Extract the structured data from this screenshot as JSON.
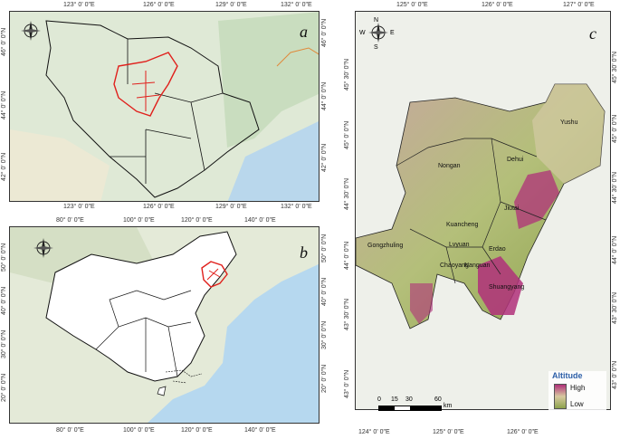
{
  "panels": {
    "a": {
      "letter": "a",
      "x_ticks": [
        "123° 0' 0\"E",
        "126° 0' 0\"E",
        "129° 0' 0\"E",
        "132° 0' 0\"E"
      ],
      "y_ticks": [
        "46° 0' 0\"N",
        "44° 0' 0\"N",
        "42° 0' 0\"N"
      ]
    },
    "b": {
      "letter": "b",
      "x_ticks": [
        "80° 0' 0\"E",
        "100° 0' 0\"E",
        "120° 0' 0\"E",
        "140° 0' 0\"E"
      ],
      "y_ticks": [
        "50° 0' 0\"N",
        "40° 0' 0\"N",
        "30° 0' 0\"N",
        "20° 0' 0\"N",
        "10° 0' 0\"N"
      ]
    },
    "c": {
      "letter": "c",
      "x_ticks": [
        "124° 0' 0\"E",
        "125° 0' 0\"E",
        "126° 0' 0\"E",
        "127° 0' 0\"E"
      ],
      "y_ticks": [
        "45° 30' 0\"N",
        "45° 0' 0\"N",
        "44° 30' 0\"N",
        "44° 0' 0\"N",
        "43° 30' 0\"N",
        "43° 0' 0\"N"
      ],
      "districts": [
        "Yushu",
        "Dehui",
        "Nongan",
        "Jiutai",
        "Kuancheng",
        "Gongzhuling",
        "Lvyuan",
        "Chaoyang",
        "Nanguan",
        "Erdao",
        "Shuangyang"
      ]
    }
  },
  "compass": {
    "n": "N",
    "s": "S",
    "e": "E",
    "w": "W"
  },
  "legend": {
    "title": "Altitude",
    "high": "High",
    "low": "Low"
  },
  "scale_bar": {
    "ticks": [
      "0",
      "15",
      "30",
      "60"
    ],
    "unit": "km"
  },
  "colors": {
    "boundary_red": "#e0201c",
    "high_altitude": "#b0307a",
    "low_altitude": "#8da24c",
    "sea": "#b6d8ef"
  }
}
